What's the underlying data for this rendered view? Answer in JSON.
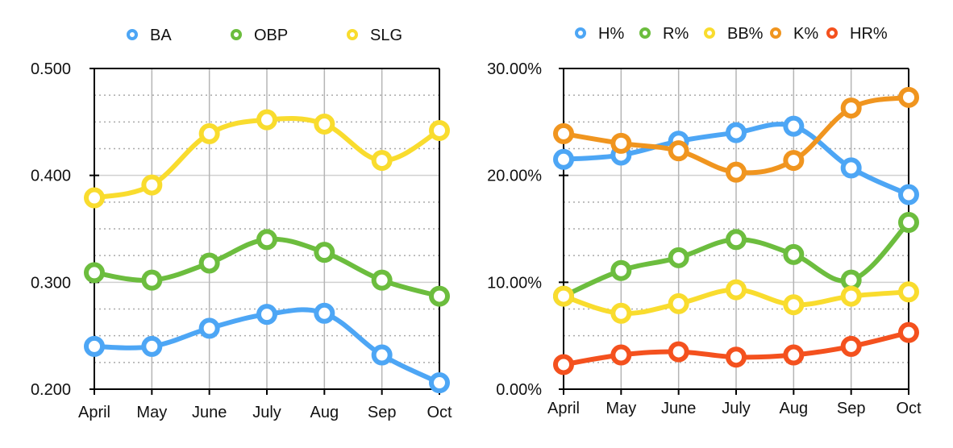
{
  "chart_data": [
    {
      "type": "line",
      "title": "",
      "xlabel": "",
      "ylabel": "",
      "categories": [
        "April",
        "May",
        "June",
        "July",
        "Aug",
        "Sep",
        "Oct"
      ],
      "ylim": [
        0.2,
        0.5
      ],
      "y_ticks": [
        0.2,
        0.3,
        0.4,
        0.5
      ],
      "y_tick_labels": [
        "0.200",
        "0.300",
        "0.400",
        "0.500"
      ],
      "minor_step": 0.025,
      "grid": true,
      "smooth": true,
      "legend_position": "top",
      "series": [
        {
          "name": "BA",
          "color": "#4da6f5",
          "values": [
            0.24,
            0.24,
            0.257,
            0.27,
            0.271,
            0.232,
            0.206
          ]
        },
        {
          "name": "OBP",
          "color": "#6cbd3e",
          "values": [
            0.309,
            0.302,
            0.318,
            0.34,
            0.328,
            0.302,
            0.287
          ]
        },
        {
          "name": "SLG",
          "color": "#f9dc2e",
          "values": [
            0.379,
            0.391,
            0.439,
            0.452,
            0.448,
            0.414,
            0.442
          ]
        }
      ]
    },
    {
      "type": "line",
      "title": "",
      "xlabel": "",
      "ylabel": "",
      "categories": [
        "April",
        "May",
        "June",
        "July",
        "Aug",
        "Sep",
        "Oct"
      ],
      "ylim": [
        0,
        30
      ],
      "y_ticks": [
        0,
        10,
        20,
        30
      ],
      "y_tick_labels": [
        "0.00%",
        "10.00%",
        "20.00%",
        "30.00%"
      ],
      "minor_step": 2.5,
      "grid": true,
      "smooth": true,
      "legend_position": "top",
      "series": [
        {
          "name": "H%",
          "color": "#4da6f5",
          "values": [
            21.5,
            21.9,
            23.2,
            24.0,
            24.6,
            20.7,
            18.2
          ]
        },
        {
          "name": "R%",
          "color": "#6cbd3e",
          "values": [
            8.7,
            11.1,
            12.3,
            14.0,
            12.6,
            10.2,
            15.6
          ]
        },
        {
          "name": "BB%",
          "color": "#f9dc2e",
          "values": [
            8.7,
            7.1,
            8.0,
            9.3,
            7.9,
            8.7,
            9.1
          ]
        },
        {
          "name": "K%",
          "color": "#f0951f",
          "values": [
            23.9,
            23.0,
            22.3,
            20.3,
            21.4,
            26.3,
            27.3
          ]
        },
        {
          "name": "HR%",
          "color": "#f4511e",
          "values": [
            2.3,
            3.2,
            3.5,
            3.0,
            3.2,
            4.0,
            5.3
          ]
        }
      ]
    }
  ]
}
